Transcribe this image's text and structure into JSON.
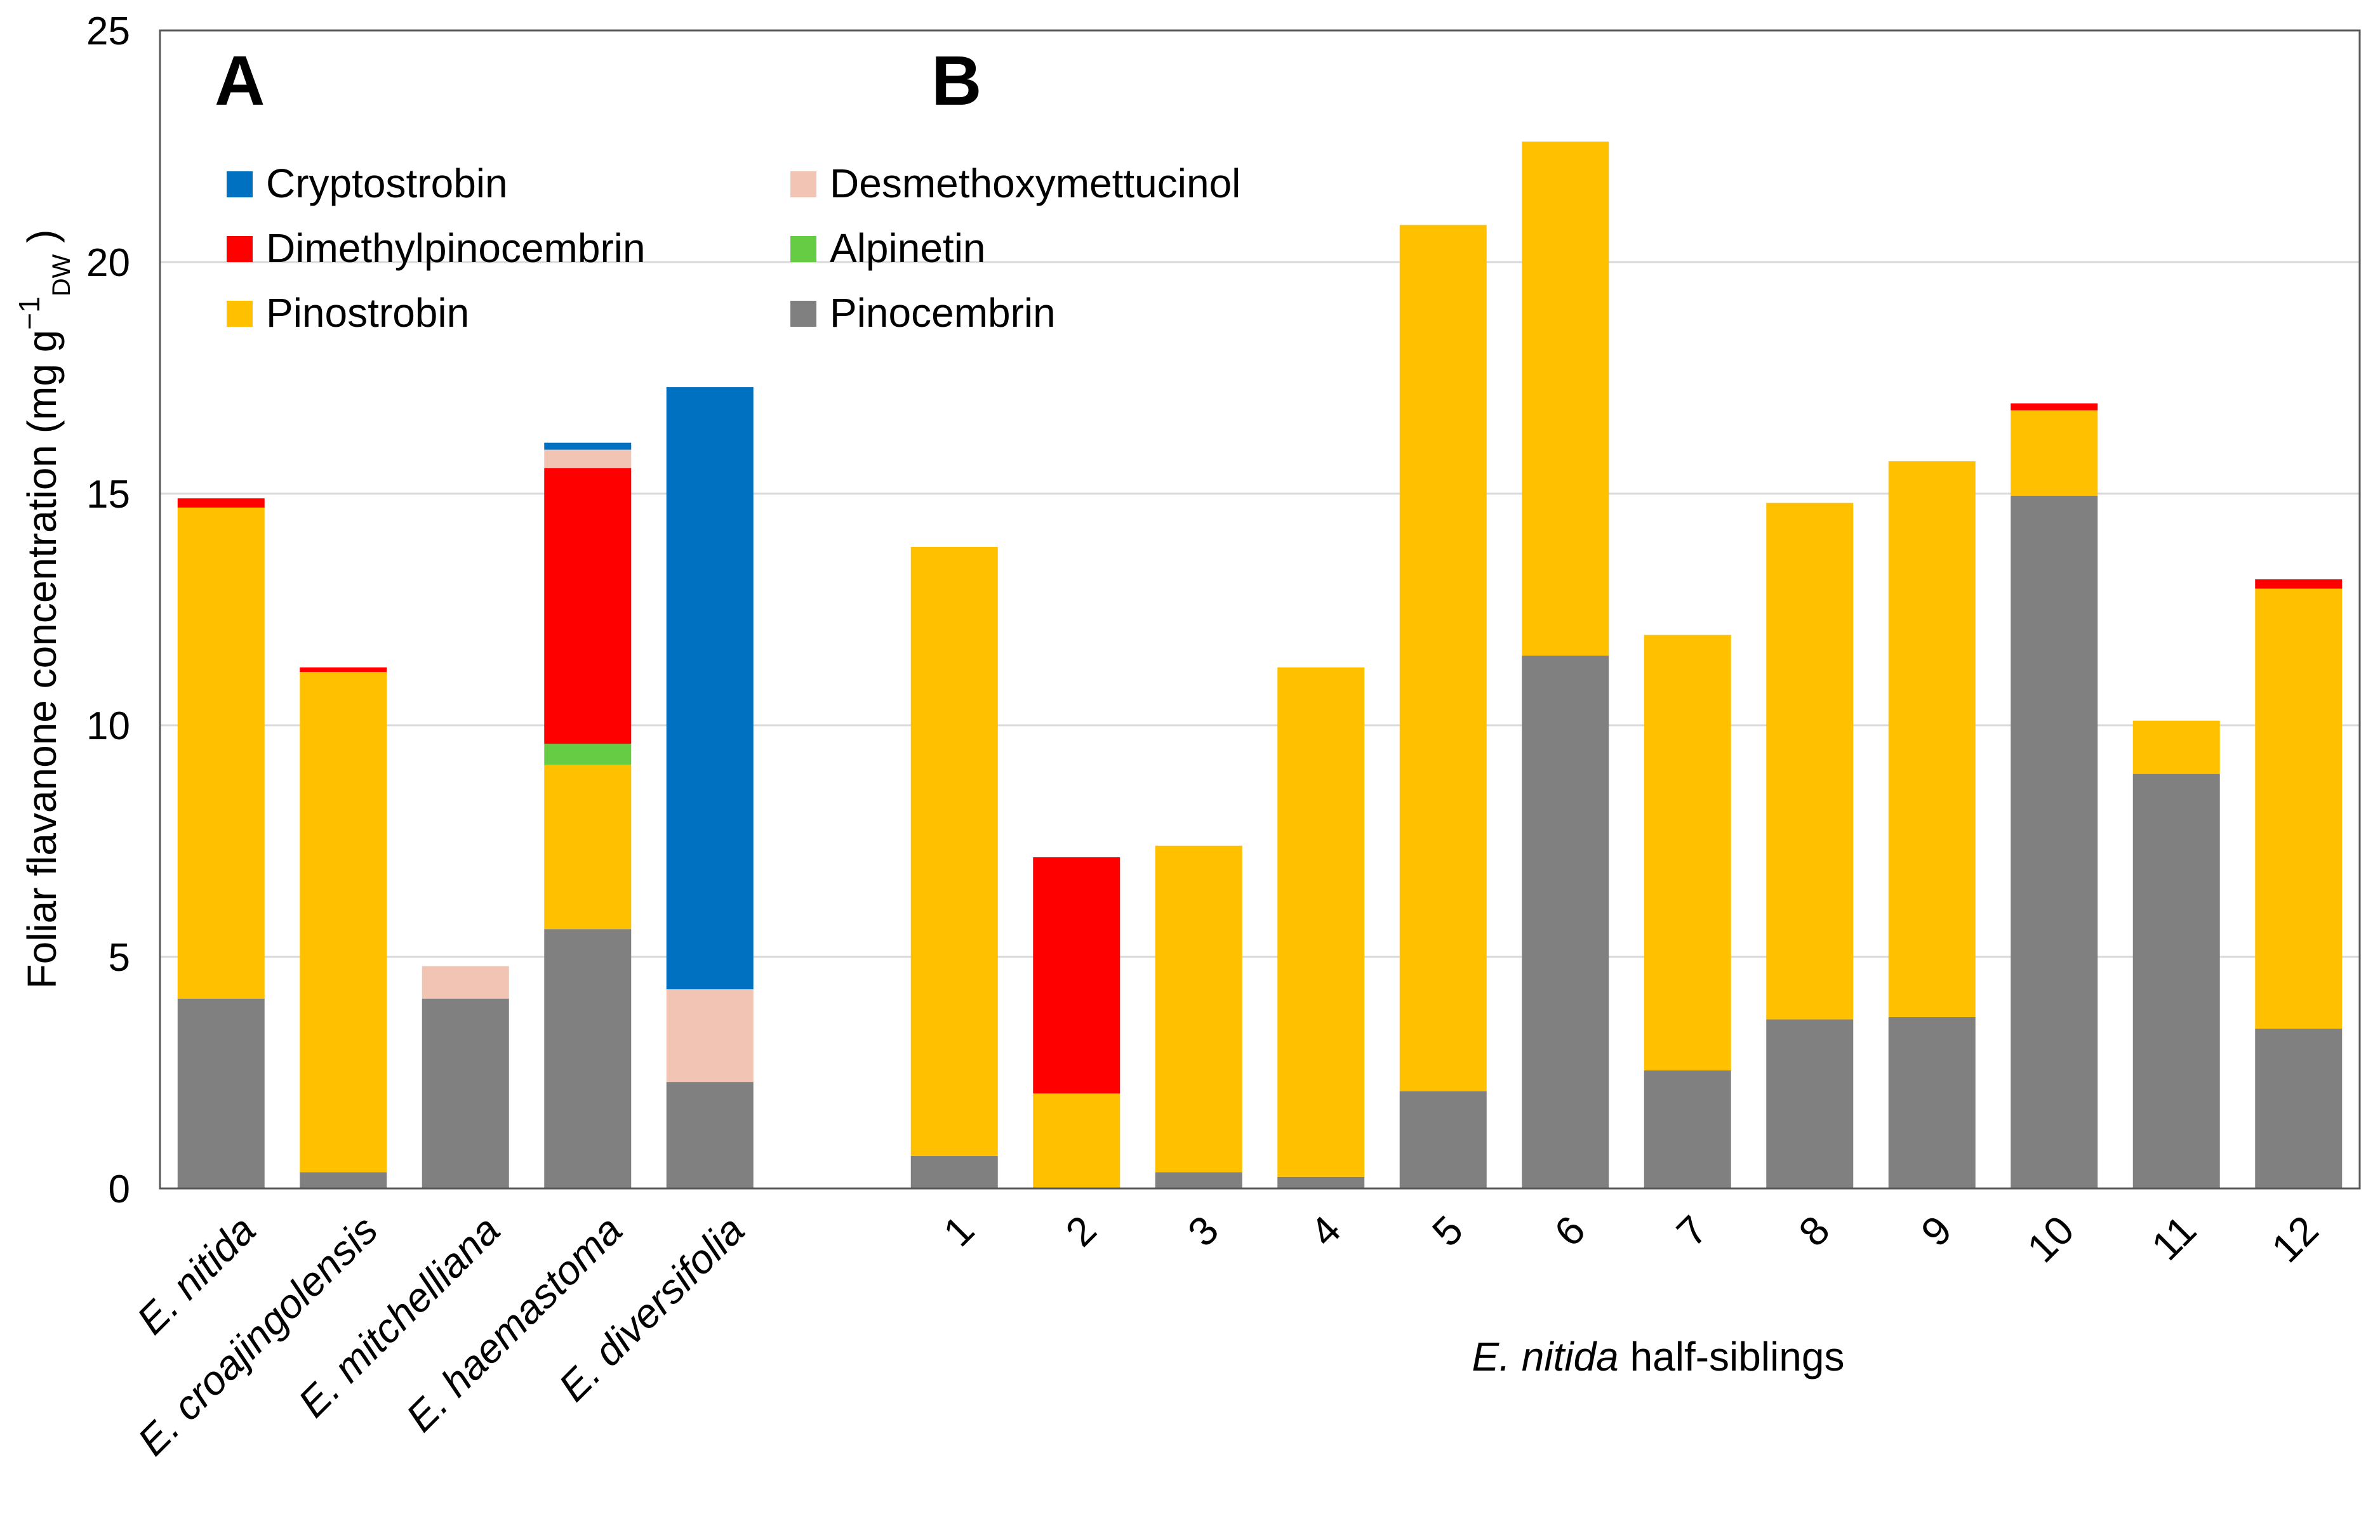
{
  "chart_data": {
    "type": "bar",
    "stacked": true,
    "ylabel": "Foliar flavanone concentration (mg g",
    "ylabel_sup": "−1",
    "ylabel_sub": "DW",
    "ylabel_end": " )",
    "ylim": [
      0,
      25
    ],
    "yticks": [
      0,
      5,
      10,
      15,
      20,
      25
    ],
    "grid": true,
    "panel_labels": [
      "A",
      "B"
    ],
    "xlabel_b_italic": "E. nitida",
    "xlabel_b_rest": " half-siblings",
    "legend_position": "top-left",
    "colors": {
      "Pinocembrin": "#808080",
      "Pinostrobin": "#FFC000",
      "Alpinetin": "#66CC44",
      "Dimethylpinocembrin": "#FF0000",
      "Desmethoxymettucinol": "#F2C4B4",
      "Cryptostrobin": "#0070C0"
    },
    "legend": [
      {
        "name": "Cryptostrobin"
      },
      {
        "name": "Desmethoxymettucinol"
      },
      {
        "name": "Dimethylpinocembrin"
      },
      {
        "name": "Alpinetin"
      },
      {
        "name": "Pinostrobin"
      },
      {
        "name": "Pinocembrin"
      }
    ],
    "stack_order": [
      "Pinocembrin",
      "Pinostrobin",
      "Alpinetin",
      "Dimethylpinocembrin",
      "Desmethoxymettucinol",
      "Cryptostrobin"
    ],
    "categories": [
      "E. nitida",
      "E. croajingolensis",
      "E. mitchelliana",
      "E. haemastoma",
      "E. diversifolia",
      "1",
      "2",
      "3",
      "4",
      "5",
      "6",
      "7",
      "8",
      "9",
      "10",
      "11",
      "12"
    ],
    "series": [
      {
        "name": "Pinocembrin",
        "values": [
          4.1,
          0.35,
          4.1,
          5.6,
          2.3,
          0.7,
          0.0,
          0.35,
          0.25,
          2.1,
          11.5,
          2.55,
          3.65,
          3.7,
          14.95,
          8.95,
          3.45
        ]
      },
      {
        "name": "Pinostrobin",
        "values": [
          10.6,
          10.8,
          0.0,
          3.55,
          0.0,
          13.15,
          2.05,
          7.05,
          11.0,
          18.7,
          11.1,
          9.4,
          11.15,
          12.0,
          1.85,
          1.15,
          9.5
        ]
      },
      {
        "name": "Alpinetin",
        "values": [
          0.0,
          0.0,
          0.0,
          0.45,
          0.0,
          0.0,
          0.0,
          0.0,
          0.0,
          0.0,
          0.0,
          0.0,
          0.0,
          0.0,
          0.0,
          0.0,
          0.0
        ]
      },
      {
        "name": "Dimethylpinocembrin",
        "values": [
          0.2,
          0.1,
          0.0,
          5.95,
          0.0,
          0.0,
          5.1,
          0.0,
          0.0,
          0.0,
          0.0,
          0.0,
          0.0,
          0.0,
          0.15,
          0.0,
          0.2
        ]
      },
      {
        "name": "Desmethoxymettucinol",
        "values": [
          0.0,
          0.0,
          0.7,
          0.4,
          2.0,
          0.0,
          0.0,
          0.0,
          0.0,
          0.0,
          0.0,
          0.0,
          0.0,
          0.0,
          0.0,
          0.0,
          0.0
        ]
      },
      {
        "name": "Cryptostrobin",
        "values": [
          0.0,
          0.0,
          0.0,
          0.15,
          13.0,
          0.0,
          0.0,
          0.0,
          0.0,
          0.0,
          0.0,
          0.0,
          0.0,
          0.0,
          0.0,
          0.0,
          0.0
        ]
      }
    ]
  }
}
